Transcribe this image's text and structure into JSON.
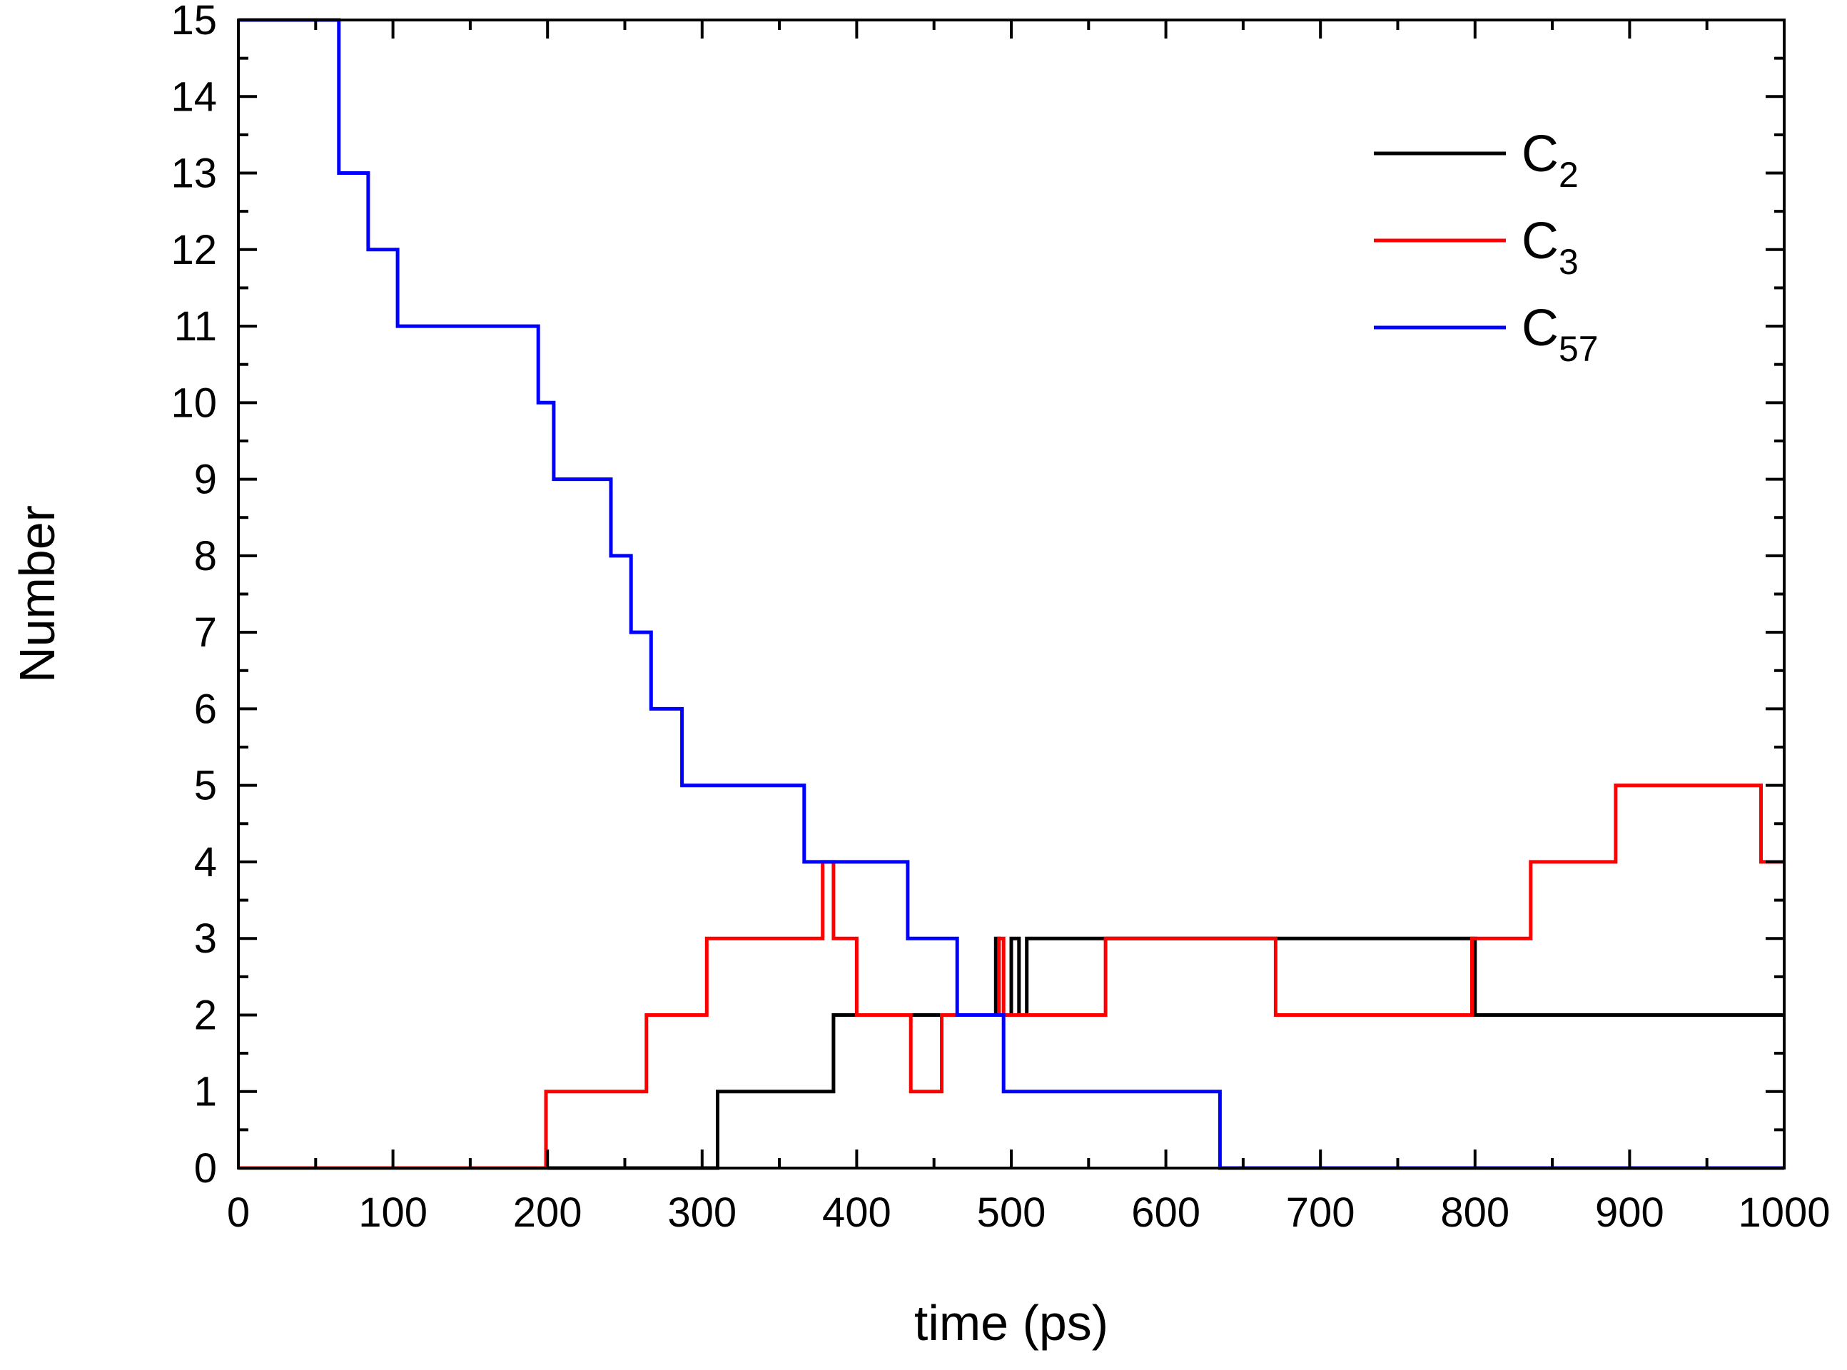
{
  "chart_data": {
    "type": "line",
    "step": true,
    "title": "",
    "xlabel": "time (ps)",
    "ylabel": "Number",
    "xlim": [
      0,
      1000
    ],
    "ylim": [
      0,
      15
    ],
    "xticks": [
      "0",
      "100",
      "200",
      "300",
      "400",
      "500",
      "600",
      "700",
      "800",
      "900",
      "1000"
    ],
    "xtick_values": [
      0,
      100,
      200,
      300,
      400,
      500,
      600,
      700,
      800,
      900,
      1000
    ],
    "yticks": [
      "0",
      "1",
      "2",
      "3",
      "4",
      "5",
      "6",
      "7",
      "8",
      "9",
      "10",
      "11",
      "12",
      "13",
      "14",
      "15"
    ],
    "ytick_values": [
      0,
      1,
      2,
      3,
      4,
      5,
      6,
      7,
      8,
      9,
      10,
      11,
      12,
      13,
      14,
      15
    ],
    "grid": false,
    "legend_position": "top-right",
    "series": [
      {
        "name": "C2",
        "base": "C",
        "sub": "2",
        "color": "#000000",
        "x": [
          0,
          310,
          385,
          490,
          492,
          500,
          505,
          510,
          514,
          800,
          1000
        ],
        "y": [
          0,
          1,
          2,
          3,
          2,
          3,
          2,
          3,
          3,
          2,
          2
        ]
      },
      {
        "name": "C3",
        "base": "C",
        "sub": "3",
        "color": "#ff0000",
        "x": [
          0,
          199,
          264,
          303,
          378,
          382,
          385,
          400,
          435,
          455,
          492,
          495,
          561,
          671,
          798,
          836,
          891,
          985,
          1000
        ],
        "y": [
          0,
          1,
          2,
          3,
          4,
          4,
          3,
          2,
          1,
          2,
          3,
          2,
          3,
          2,
          3,
          4,
          5,
          4,
          4
        ]
      },
      {
        "name": "C57",
        "base": "C",
        "sub": "57",
        "color": "#0000ff",
        "x": [
          0,
          65,
          84,
          103,
          194,
          204,
          241,
          254,
          267,
          287,
          366,
          433,
          465,
          495,
          635,
          1000
        ],
        "y": [
          15,
          13,
          12,
          11,
          10,
          9,
          8,
          7,
          6,
          5,
          4,
          3,
          2,
          1,
          0,
          0
        ]
      }
    ]
  }
}
